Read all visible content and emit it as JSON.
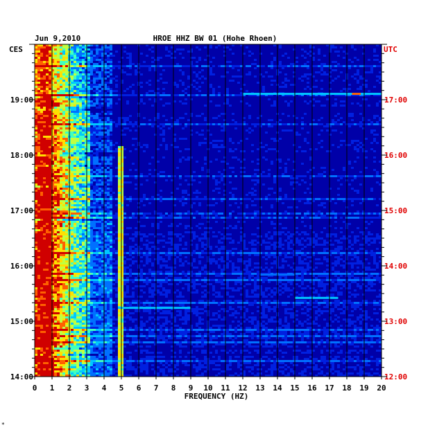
{
  "chart_data": {
    "type": "heatmap",
    "date": "Jun 9,2010",
    "title": "HROE HHZ BW 01 (Hohe Rhoen)",
    "xlabel": "FREQUENCY (HZ)",
    "left_axis_label": "CES",
    "right_axis_label": "UTC",
    "x_ticks": [
      "0",
      "1",
      "2",
      "3",
      "4",
      "5",
      "6",
      "7",
      "8",
      "9",
      "10",
      "11",
      "12",
      "13",
      "14",
      "15",
      "16",
      "17",
      "18",
      "19",
      "20"
    ],
    "xlim": [
      0,
      20
    ],
    "left_ticks": [
      "19:00",
      "18:00",
      "17:00",
      "16:00",
      "15:00",
      "14:00"
    ],
    "right_ticks": [
      "17:00",
      "16:00",
      "15:00",
      "14:00",
      "13:00",
      "12:00"
    ],
    "time_range_ces": [
      "14:00",
      "19:55"
    ],
    "dominant_bands_hz": [
      [
        0.2,
        3.2
      ],
      [
        4.8,
        5.0
      ]
    ],
    "colors": {
      "background": "#0000a8",
      "grid": "#000000",
      "utc_text": "#e00000",
      "text": "#000000"
    },
    "colorscale": [
      "#0000a8",
      "#0020e0",
      "#0070ff",
      "#00c8ff",
      "#40ffc0",
      "#c0ff40",
      "#ffe000",
      "#ff6000",
      "#d00000"
    ]
  },
  "footer_mark": "*"
}
